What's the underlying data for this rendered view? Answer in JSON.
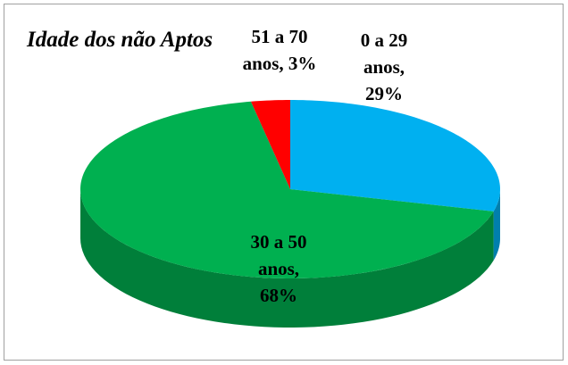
{
  "chart_data": {
    "type": "pie",
    "title": "Idade dos não Aptos",
    "values": [
      29,
      68,
      3
    ],
    "value_labels": [
      [
        "0 a 29",
        "anos,",
        "29%"
      ],
      [
        "30 a 50",
        "anos,",
        "68%"
      ],
      [
        "51 a 70",
        "anos, 3%"
      ]
    ],
    "colors": [
      "#00b0f0",
      "#00b050",
      "#ff0000"
    ],
    "three_d": true
  }
}
